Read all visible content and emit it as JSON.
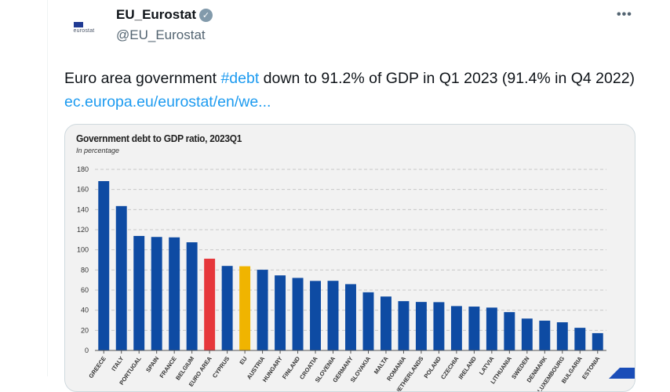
{
  "tweet": {
    "display_name": "EU_Eurostat",
    "handle": "@EU_Eurostat",
    "avatar_text": "eurostat",
    "verified_icon": "check-badge-icon",
    "more_icon": "more-horizontal-icon",
    "more_label": "•••",
    "text_part1": "Euro area government ",
    "hashtag": "#debt",
    "text_part2": " down to 91.2% of GDP in Q1 2023 (91.4% in Q4 2022) ",
    "link": "ec.europa.eu/eurostat/en/we..."
  },
  "colors": {
    "bar_default": "#0e4ba3",
    "bar_euro_area": "#e6373b",
    "bar_eu": "#f0b400",
    "link": "#1d9bf0"
  },
  "chart_data": {
    "type": "bar",
    "title": "Government debt to GDP ratio, 2023Q1",
    "subtitle": "In percentage",
    "xlabel": "",
    "ylabel": "",
    "ylim": [
      0,
      180
    ],
    "yticks": [
      0,
      20,
      40,
      60,
      80,
      100,
      120,
      140,
      160,
      180
    ],
    "grid": true,
    "categories": [
      "GREECE",
      "ITALY",
      "PORTUGAL",
      "SPAIN",
      "FRANCE",
      "BELGIUM",
      "EURO AREA",
      "CYPRUS",
      "EU",
      "AUSTRIA",
      "HUNGARY",
      "FINLAND",
      "CROATIA",
      "SLOVENIA",
      "GERMANY",
      "SLOVAKIA",
      "MALTA",
      "ROMANIA",
      "NETHERLANDS",
      "POLAND",
      "CZECHIA",
      "IRELAND",
      "LATVIA",
      "LITHUANIA",
      "SWEDEN",
      "DENMARK",
      "LUXEMBOURG",
      "BULGARIA",
      "ESTONIA"
    ],
    "values": [
      168.3,
      143.5,
      113.8,
      112.8,
      112.4,
      107.5,
      91.2,
      84.0,
      83.7,
      80.2,
      74.6,
      72.1,
      69.1,
      69.2,
      65.9,
      57.8,
      53.6,
      49.0,
      48.2,
      48.0,
      44.1,
      43.6,
      42.6,
      38.1,
      31.7,
      29.6,
      28.0,
      22.5,
      17.2
    ],
    "highlight": {
      "EURO AREA": "bar_euro_area",
      "EU": "bar_eu"
    }
  }
}
